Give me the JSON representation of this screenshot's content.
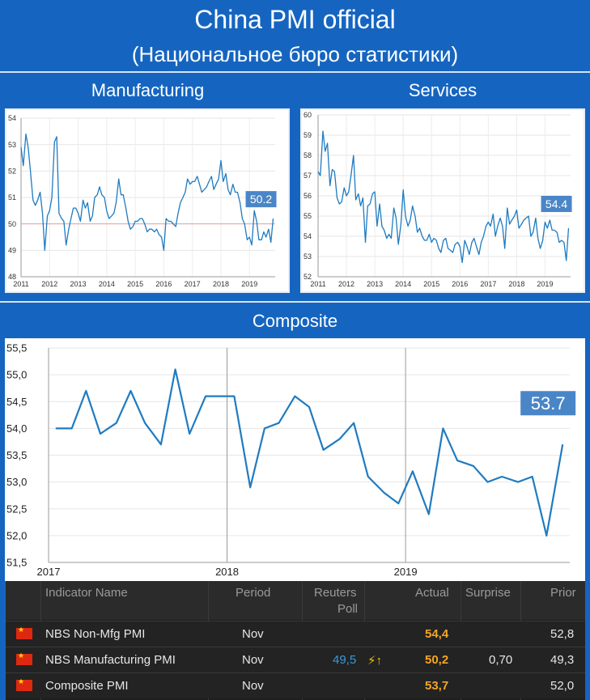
{
  "header": {
    "title": "China PMI official",
    "subtitle": "(Национальное бюро статистики)"
  },
  "sections": {
    "manufacturing": "Manufacturing",
    "services": "Services",
    "composite": "Composite"
  },
  "colors": {
    "line": "#1f7bc1",
    "badge": "#4a86c7",
    "frame": "#1565c0",
    "actual": "#f5a623"
  },
  "chart_data": [
    {
      "type": "line",
      "name": "manufacturing",
      "x_ticks": [
        "2011",
        "2012",
        "2013",
        "2014",
        "2015",
        "2016",
        "2017",
        "2018",
        "2019"
      ],
      "y_ticks": [
        "48",
        "49",
        "50",
        "51",
        "52",
        "53",
        "54"
      ],
      "ylim": [
        48,
        54
      ],
      "xlim": [
        2011,
        2019.9
      ],
      "reference_line": 50,
      "last_value_label": "50.2",
      "x": [
        2011.0,
        2011.08,
        2011.17,
        2011.25,
        2011.33,
        2011.42,
        2011.5,
        2011.58,
        2011.67,
        2011.75,
        2011.83,
        2011.92,
        2012.0,
        2012.08,
        2012.17,
        2012.25,
        2012.33,
        2012.42,
        2012.5,
        2012.58,
        2012.67,
        2012.75,
        2012.83,
        2012.92,
        2013.0,
        2013.08,
        2013.17,
        2013.25,
        2013.33,
        2013.42,
        2013.5,
        2013.58,
        2013.67,
        2013.75,
        2013.83,
        2013.92,
        2014.0,
        2014.08,
        2014.17,
        2014.25,
        2014.33,
        2014.42,
        2014.5,
        2014.58,
        2014.67,
        2014.75,
        2014.83,
        2014.92,
        2015.0,
        2015.08,
        2015.17,
        2015.25,
        2015.33,
        2015.42,
        2015.5,
        2015.58,
        2015.67,
        2015.75,
        2015.83,
        2015.92,
        2016.0,
        2016.08,
        2016.17,
        2016.25,
        2016.33,
        2016.42,
        2016.5,
        2016.58,
        2016.67,
        2016.75,
        2016.83,
        2016.92,
        2017.0,
        2017.08,
        2017.17,
        2017.25,
        2017.33,
        2017.42,
        2017.5,
        2017.58,
        2017.67,
        2017.75,
        2017.83,
        2017.92,
        2018.0,
        2018.08,
        2018.17,
        2018.25,
        2018.33,
        2018.42,
        2018.5,
        2018.58,
        2018.67,
        2018.75,
        2018.83,
        2018.92,
        2019.0,
        2019.08,
        2019.17,
        2019.25,
        2019.33,
        2019.42,
        2019.5,
        2019.58,
        2019.67,
        2019.75,
        2019.83
      ],
      "values": [
        52.9,
        52.2,
        53.4,
        52.9,
        52.0,
        50.9,
        50.7,
        50.9,
        51.2,
        50.4,
        49.0,
        50.3,
        50.5,
        51.0,
        53.1,
        53.3,
        50.4,
        50.2,
        50.1,
        49.2,
        49.8,
        50.2,
        50.6,
        50.6,
        50.4,
        50.1,
        50.9,
        50.6,
        50.8,
        50.1,
        50.3,
        51.0,
        51.1,
        51.4,
        51.1,
        51.0,
        50.5,
        50.2,
        50.3,
        50.4,
        50.8,
        51.7,
        51.1,
        51.1,
        50.6,
        50.1,
        49.8,
        49.9,
        50.1,
        50.1,
        50.2,
        50.2,
        50.0,
        49.7,
        49.8,
        49.8,
        49.7,
        49.8,
        49.6,
        49.5,
        49.0,
        50.2,
        50.1,
        50.1,
        50.0,
        49.9,
        50.4,
        50.8,
        51.0,
        51.2,
        51.7,
        51.5,
        51.6,
        51.6,
        51.8,
        51.5,
        51.2,
        51.3,
        51.4,
        51.6,
        51.8,
        51.3,
        51.5,
        51.7,
        52.4,
        51.6,
        51.9,
        51.3,
        51.1,
        51.5,
        51.2,
        51.2,
        50.8,
        50.2,
        50.0,
        49.4,
        49.5,
        49.2,
        50.5,
        50.1,
        49.4,
        49.4,
        49.7,
        49.5,
        49.8,
        49.3,
        50.2
      ]
    },
    {
      "type": "line",
      "name": "services",
      "x_ticks": [
        "2011",
        "2012",
        "2013",
        "2014",
        "2015",
        "2016",
        "2017",
        "2018",
        "2019"
      ],
      "y_ticks": [
        "52",
        "53",
        "54",
        "55",
        "56",
        "57",
        "58",
        "59",
        "60"
      ],
      "ylim": [
        52,
        60
      ],
      "xlim": [
        2011,
        2019.9
      ],
      "last_value_label": "54.4",
      "x": [
        2011.0,
        2011.08,
        2011.17,
        2011.25,
        2011.33,
        2011.42,
        2011.5,
        2011.58,
        2011.67,
        2011.75,
        2011.83,
        2011.92,
        2012.0,
        2012.08,
        2012.17,
        2012.25,
        2012.33,
        2012.42,
        2012.5,
        2012.58,
        2012.67,
        2012.75,
        2012.83,
        2012.92,
        2013.0,
        2013.08,
        2013.17,
        2013.25,
        2013.33,
        2013.42,
        2013.5,
        2013.58,
        2013.67,
        2013.75,
        2013.83,
        2013.92,
        2014.0,
        2014.08,
        2014.17,
        2014.25,
        2014.33,
        2014.42,
        2014.5,
        2014.58,
        2014.67,
        2014.75,
        2014.83,
        2014.92,
        2015.0,
        2015.08,
        2015.17,
        2015.25,
        2015.33,
        2015.42,
        2015.5,
        2015.58,
        2015.67,
        2015.75,
        2015.83,
        2015.92,
        2016.0,
        2016.08,
        2016.17,
        2016.25,
        2016.33,
        2016.42,
        2016.5,
        2016.58,
        2016.67,
        2016.75,
        2016.83,
        2016.92,
        2017.0,
        2017.08,
        2017.17,
        2017.25,
        2017.33,
        2017.42,
        2017.5,
        2017.58,
        2017.67,
        2017.75,
        2017.83,
        2017.92,
        2018.0,
        2018.08,
        2018.17,
        2018.25,
        2018.33,
        2018.42,
        2018.5,
        2018.58,
        2018.67,
        2018.75,
        2018.83,
        2018.92,
        2019.0,
        2019.08,
        2019.17,
        2019.25,
        2019.33,
        2019.42,
        2019.5,
        2019.58,
        2019.67,
        2019.75,
        2019.83
      ],
      "values": [
        57.2,
        57.0,
        59.2,
        58.2,
        58.6,
        56.5,
        57.3,
        57.2,
        55.9,
        55.6,
        55.7,
        56.4,
        56.0,
        56.2,
        57.1,
        58.0,
        55.8,
        56.1,
        55.5,
        55.9,
        53.7,
        55.5,
        55.6,
        56.1,
        56.2,
        54.5,
        55.6,
        54.5,
        54.3,
        53.9,
        54.1,
        53.9,
        55.4,
        54.9,
        53.6,
        54.6,
        56.3,
        55.0,
        54.5,
        54.8,
        55.5,
        55.0,
        54.2,
        54.4,
        54.0,
        53.8,
        53.8,
        54.1,
        53.7,
        53.9,
        53.8,
        53.4,
        53.2,
        53.8,
        53.9,
        53.4,
        53.3,
        53.2,
        53.6,
        53.7,
        53.5,
        52.7,
        53.8,
        53.5,
        53.1,
        53.7,
        53.9,
        53.5,
        53.1,
        53.7,
        54.0,
        54.5,
        54.7,
        54.5,
        55.1,
        54.0,
        54.5,
        54.9,
        54.5,
        53.4,
        55.4,
        54.6,
        54.8,
        55.0,
        55.3,
        54.4,
        54.6,
        54.8,
        54.9,
        55.0,
        54.0,
        54.2,
        54.9,
        53.9,
        53.4,
        53.8,
        54.7,
        54.4,
        54.8,
        54.3,
        54.3,
        54.2,
        53.7,
        53.8,
        53.7,
        52.8,
        54.4
      ]
    },
    {
      "type": "line",
      "name": "composite",
      "x_ticks": [
        "2017",
        "2018",
        "2019"
      ],
      "y_ticks": [
        "51,5",
        "52,0",
        "52,5",
        "53,0",
        "53,5",
        "54,0",
        "54,5",
        "55,0",
        "55,5"
      ],
      "ylim": [
        51.5,
        55.5
      ],
      "xlim": [
        2017,
        2019.92
      ],
      "last_value_label": "53.7",
      "x": [
        2017.04,
        2017.13,
        2017.21,
        2017.29,
        2017.38,
        2017.46,
        2017.54,
        2017.63,
        2017.71,
        2017.79,
        2017.88,
        2017.96,
        2018.04,
        2018.13,
        2018.21,
        2018.29,
        2018.38,
        2018.46,
        2018.54,
        2018.63,
        2018.71,
        2018.79,
        2018.88,
        2018.96,
        2019.04,
        2019.13,
        2019.21,
        2019.29,
        2019.38,
        2019.46,
        2019.54,
        2019.63,
        2019.71,
        2019.79,
        2019.88
      ],
      "values": [
        54.0,
        54.0,
        54.7,
        53.9,
        54.1,
        54.7,
        54.1,
        53.7,
        55.1,
        53.9,
        54.6,
        54.6,
        54.6,
        52.9,
        54.0,
        54.1,
        54.6,
        54.4,
        53.6,
        53.8,
        54.1,
        53.1,
        52.8,
        52.6,
        53.2,
        52.4,
        54.0,
        53.4,
        53.3,
        53.0,
        53.1,
        53.0,
        53.1,
        52.0,
        53.7
      ]
    }
  ],
  "table": {
    "headers": {
      "indicator": "Indicator Name",
      "period": "Period",
      "poll_line1": "Reuters",
      "poll_line2": "Poll",
      "actual": "Actual",
      "surprise": "Surprise",
      "prior": "Prior"
    },
    "rows": [
      {
        "flag_icon": "china-flag-icon",
        "name": "NBS Non-Mfg PMI",
        "period": "Nov",
        "poll": "",
        "beat_icon": "",
        "actual": "54,4",
        "surprise": "",
        "prior": "52,8"
      },
      {
        "flag_icon": "china-flag-icon",
        "name": "NBS Manufacturing PMI",
        "period": "Nov",
        "poll": "49,5",
        "beat_icon": "⚡↑",
        "actual": "50,2",
        "surprise": "0,70",
        "prior": "49,3"
      },
      {
        "flag_icon": "china-flag-icon",
        "name": "Composite PMI",
        "period": "Nov",
        "poll": "",
        "beat_icon": "",
        "actual": "53,7",
        "surprise": "",
        "prior": "52,0"
      }
    ]
  }
}
